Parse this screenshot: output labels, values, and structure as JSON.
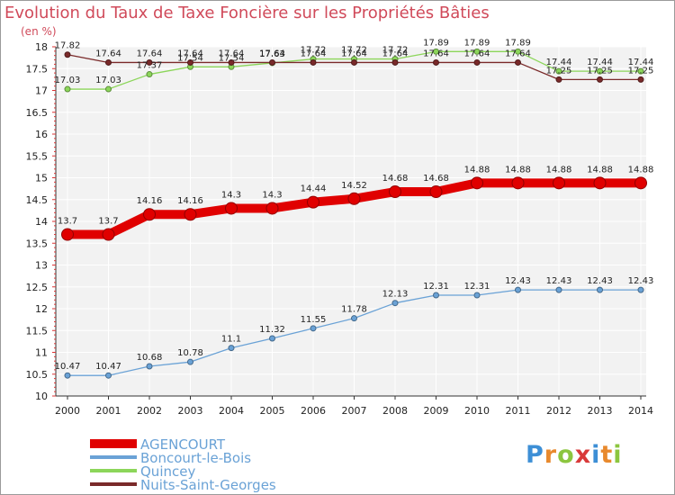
{
  "title": "Evolution du Taux de Taxe Foncière sur les Propriétés Bâties",
  "unit_label": "(en %)",
  "brand": {
    "letters": [
      "P",
      "r",
      "o",
      "x",
      "i",
      "t",
      "i"
    ],
    "colors": [
      "#3d8fd6",
      "#e8892d",
      "#8cc63f",
      "#d93a3a",
      "#3d8fd6",
      "#e8892d",
      "#8cc63f"
    ]
  },
  "chart_data": {
    "type": "line",
    "x": [
      "2000",
      "2001",
      "2002",
      "2003",
      "2004",
      "2005",
      "2006",
      "2007",
      "2008",
      "2009",
      "2010",
      "2011",
      "2012",
      "2013",
      "2014"
    ],
    "ylim": [
      10,
      18
    ],
    "yticks": [
      "10",
      "10.5",
      "11",
      "11.5",
      "12",
      "12.5",
      "13",
      "13.5",
      "14",
      "14.5",
      "15",
      "15.5",
      "16",
      "16.5",
      "17",
      "17.5",
      "18"
    ],
    "grid": true,
    "legend_position": "bottom-left",
    "series": [
      {
        "name": "AGENCOURT",
        "color": "#e00000",
        "style": "thick",
        "values": [
          13.7,
          13.7,
          14.16,
          14.16,
          14.3,
          14.3,
          14.44,
          14.52,
          14.68,
          14.68,
          14.88,
          14.88,
          14.88,
          14.88,
          14.88
        ],
        "labels": [
          "13.7",
          "13.7",
          "14.16",
          "14.16",
          "14.3",
          "14.3",
          "14.44",
          "14.52",
          "14.68",
          "14.68",
          "14.88",
          "14.88",
          "14.88",
          "14.88",
          "14.88"
        ]
      },
      {
        "name": "Boncourt-le-Bois",
        "color": "#6aa2d6",
        "style": "thin",
        "values": [
          10.47,
          10.47,
          10.68,
          10.78,
          11.1,
          11.32,
          11.55,
          11.78,
          12.13,
          12.31,
          12.31,
          12.43,
          12.43,
          12.43,
          12.43
        ],
        "labels": [
          "10.47",
          "10.47",
          "10.68",
          "10.78",
          "11.1",
          "11.32",
          "11.55",
          "11.78",
          "12.13",
          "12.31",
          "12.31",
          "12.43",
          "12.43",
          "12.43",
          "12.43"
        ]
      },
      {
        "name": "Quincey",
        "color": "#8cd65a",
        "style": "thin",
        "values": [
          17.03,
          17.03,
          17.37,
          17.54,
          17.54,
          17.63,
          17.72,
          17.72,
          17.72,
          17.89,
          17.89,
          17.89,
          17.44,
          17.44,
          17.44
        ],
        "labels": [
          "17.03",
          "17.03",
          "17.37",
          "17.54",
          "17.54",
          "17.63",
          "17.72",
          "17.72",
          "17.72",
          "17.89",
          "17.89",
          "17.89",
          "17.44",
          "17.44",
          "17.44"
        ]
      },
      {
        "name": "Nuits-Saint-Georges",
        "color": "#7a2a2a",
        "style": "thin",
        "values": [
          17.82,
          17.64,
          17.64,
          17.64,
          17.64,
          17.64,
          17.64,
          17.64,
          17.64,
          17.64,
          17.64,
          17.64,
          17.25,
          17.25,
          17.25
        ],
        "labels": [
          "17.82",
          "17.64",
          "17.64",
          "17.64",
          "17.64",
          "17.64",
          "17.64",
          "17.64",
          "17.64",
          "17.64",
          "17.64",
          "17.64",
          "17.25",
          "17.25",
          "17.25"
        ]
      }
    ]
  }
}
